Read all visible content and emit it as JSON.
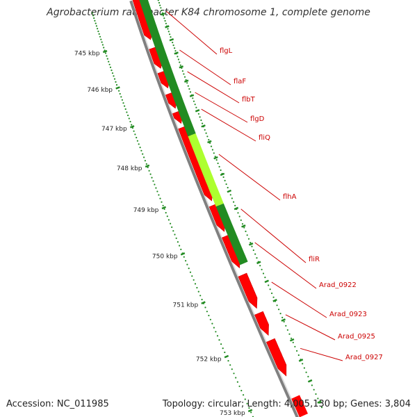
{
  "title": "Agrobacterium radiobacter K84 chromosome 1, complete genome",
  "footer": {
    "accession": "Accession: NC_011985",
    "summary": "Topology: circular; Length: 4,005,130 bp; Genes: 3,804"
  },
  "ruler": {
    "ticks": [
      "745 kbp",
      "746 kbp",
      "747 kbp",
      "748 kbp",
      "749 kbp",
      "750 kbp",
      "751 kbp",
      "752 kbp",
      "753 kbp"
    ]
  },
  "genes": [
    {
      "name": "flgL"
    },
    {
      "name": "flaF"
    },
    {
      "name": "flbT"
    },
    {
      "name": "flgD"
    },
    {
      "name": "fliQ"
    },
    {
      "name": "flhA"
    },
    {
      "name": "fliR"
    },
    {
      "name": "Arad_0922"
    },
    {
      "name": "Arad_0923"
    },
    {
      "name": "Arad_0925"
    },
    {
      "name": "Arad_0927"
    }
  ],
  "colors": {
    "gene_forward": "#ff0000",
    "gc_skew_dark": "#228b22",
    "gc_skew_light": "#adff2f",
    "backbone": "#808080",
    "tick": "#228b22",
    "label": "#cc0000"
  }
}
